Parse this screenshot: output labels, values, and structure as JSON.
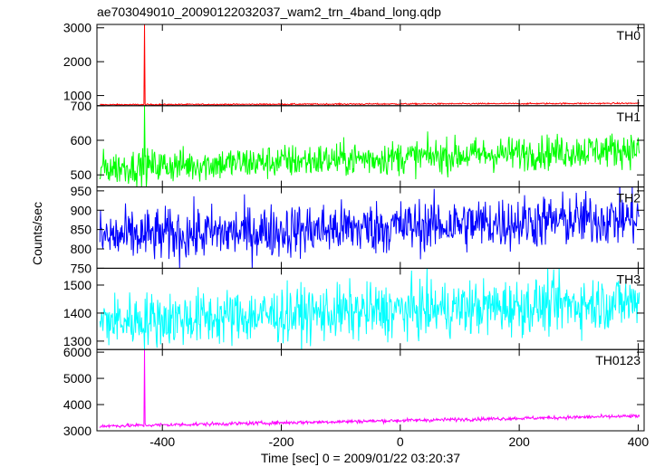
{
  "title": "ae703049010_20090122032037_wam2_trn_4band_long.qdp",
  "ylabel": "Counts/sec",
  "xlabel": "Time [sec] 0 = 2009/01/22 03:20:37",
  "chart_data": {
    "type": "line",
    "title": "ae703049010_20090122032037_wam2_trn_4band_long.qdp",
    "xlabel": "Time [sec] 0 = 2009/01/22 03:20:37",
    "ylabel": "Counts/sec",
    "xlim": [
      -510,
      410
    ],
    "xticks": [
      -400,
      -200,
      0,
      200,
      400
    ],
    "x_start": -505,
    "x_end": 402,
    "x_step": 1,
    "panels": [
      {
        "name": "TH0",
        "color": "#ff0000",
        "ylim": [
          700,
          3100
        ],
        "yticks": [
          1000,
          2000,
          3000
        ],
        "base_start": 730,
        "base_end": 770,
        "noise": 10,
        "spike": {
          "x": -430,
          "y": 3100
        }
      },
      {
        "name": "TH1",
        "color": "#00ff00",
        "ylim": [
          465,
          700
        ],
        "yticks": [
          500,
          600,
          700
        ],
        "base_start": 520,
        "base_end": 575,
        "noise": 25,
        "spike": {
          "x": -430,
          "y": 700
        }
      },
      {
        "name": "TH2",
        "color": "#0000ff",
        "ylim": [
          750,
          960
        ],
        "yticks": [
          750,
          800,
          850,
          900,
          950
        ],
        "base_start": 830,
        "base_end": 880,
        "noise": 35,
        "spike": null
      },
      {
        "name": "TH3",
        "color": "#00ffff",
        "ylim": [
          1270,
          1560
        ],
        "yticks": [
          1300,
          1400,
          1500
        ],
        "base_start": 1370,
        "base_end": 1440,
        "noise": 50,
        "spike": null
      },
      {
        "name": "TH0123",
        "color": "#ff00ff",
        "ylim": [
          3000,
          6100
        ],
        "yticks": [
          3000,
          4000,
          5000,
          6000
        ],
        "base_start": 3180,
        "base_end": 3560,
        "noise": 35,
        "spike": {
          "x": -430,
          "y": 6100
        }
      }
    ]
  }
}
